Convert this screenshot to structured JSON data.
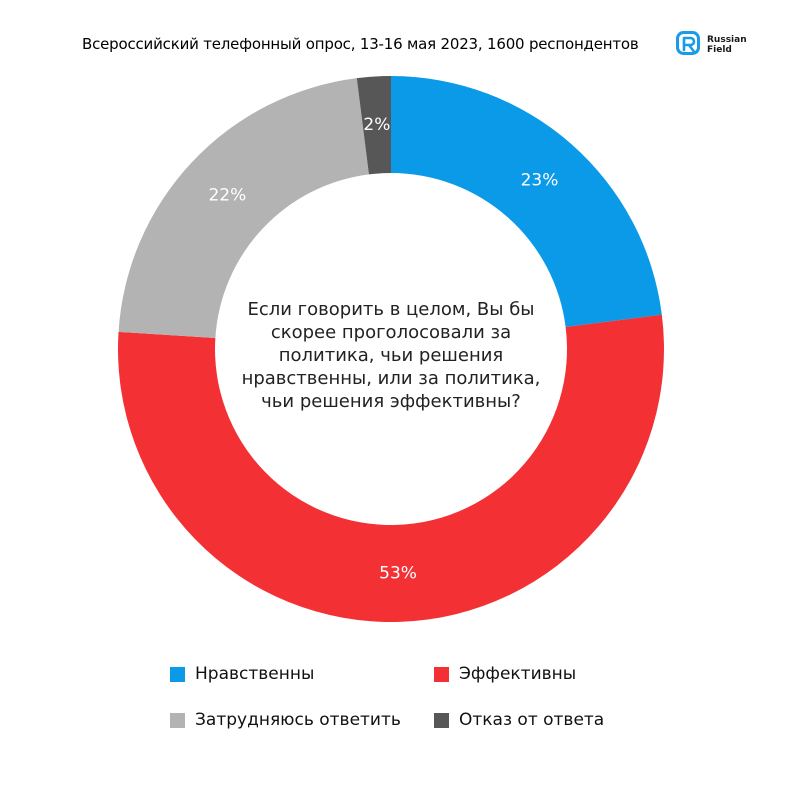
{
  "header": {
    "subtitle": "Всероссийский телефонный опрос, 13-16 мая 2023, 1600 респондентов",
    "logo_line1": "Russian",
    "logo_line2": "Field",
    "logo_icon": "russian-field-logo-icon",
    "brand_color": "#1a9be8"
  },
  "chart_data": {
    "type": "pie",
    "subtype": "donut",
    "center_text": "Если говорить в целом, Вы бы скорее проголосовали за политика, чьи решения нравственны, или за политика, чьи решения эффективны?",
    "categories": [
      "Нравственны",
      "Эффективны",
      "Затрудняюсь ответить",
      "Отказ от ответа"
    ],
    "values": [
      23,
      53,
      22,
      2
    ],
    "labels": [
      "23%",
      "53%",
      "22%",
      "2%"
    ],
    "colors": [
      "#0a9ae8",
      "#f33135",
      "#b3b3b3",
      "#575757"
    ],
    "start_angle_deg": 0,
    "direction": "clockwise",
    "legend_position": "bottom",
    "title": "",
    "xlabel": "",
    "ylabel": ""
  }
}
